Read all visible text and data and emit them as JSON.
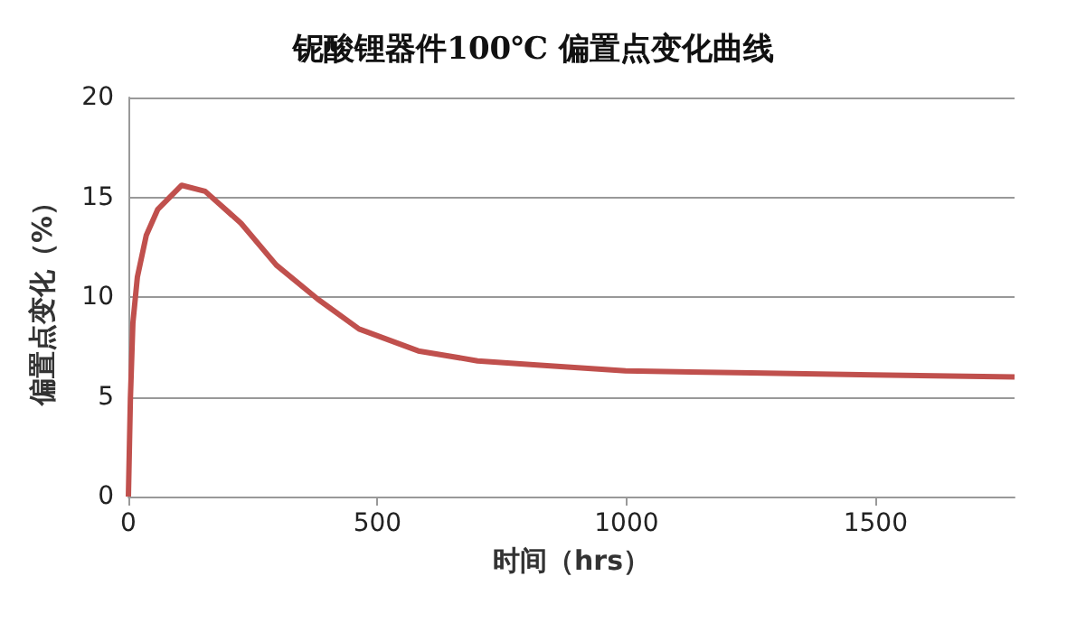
{
  "chart_data": {
    "type": "line",
    "title": "铌酸锂器件100℃ 偏置点变化曲线",
    "xlabel": "时间（hrs）",
    "ylabel": "偏置点变化（%）",
    "series": [
      {
        "color": "#c0504d",
        "x": [
          0,
          4,
          9,
          18,
          36,
          59,
          107,
          154,
          226,
          297,
          380,
          463,
          582,
          701,
          820,
          998,
          1250,
          1496,
          1779
        ],
        "values": [
          0,
          4.9,
          8.7,
          11.0,
          13.1,
          14.4,
          15.6,
          15.3,
          13.7,
          11.6,
          9.9,
          8.4,
          7.3,
          6.8,
          6.6,
          6.3,
          6.2,
          6.1,
          6.0
        ]
      }
    ],
    "xlim": [
      0,
      1779
    ],
    "xticks": [
      0,
      500,
      1000,
      1500
    ],
    "ylim": [
      0,
      20
    ],
    "yticks": [
      0,
      5,
      10,
      15,
      20
    ],
    "grid": "y",
    "marker": "none",
    "line_style": "solid"
  }
}
